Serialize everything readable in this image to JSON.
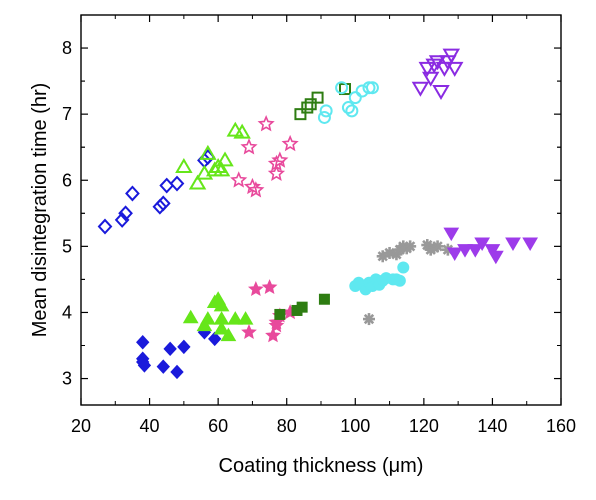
{
  "chart_data": {
    "type": "scatter",
    "title": "",
    "xlabel": "Coating thickness (μm)",
    "ylabel": "Mean disintegration time (hr)",
    "xlim": [
      20,
      160
    ],
    "ylim": [
      2.6,
      8.5
    ],
    "xticks": [
      "20",
      "40",
      "60",
      "80",
      "100",
      "120",
      "140",
      "160"
    ],
    "yticks": [
      "3",
      "4",
      "5",
      "6",
      "7",
      "8"
    ],
    "grid": false,
    "legend": "none",
    "series": [
      {
        "color": "#1a1adb",
        "marker": "diamond",
        "filled": false,
        "x": [
          27,
          32,
          33,
          35,
          43,
          44,
          45,
          48,
          56,
          57
        ],
        "y": [
          5.3,
          5.4,
          5.5,
          5.8,
          5.6,
          5.65,
          5.92,
          5.95,
          6.3,
          6.35
        ]
      },
      {
        "color": "#1a1adb",
        "marker": "diamond",
        "filled": true,
        "x": [
          38,
          38,
          38,
          38.5,
          44,
          46,
          48,
          50,
          56,
          59
        ],
        "y": [
          3.55,
          3.3,
          3.25,
          3.2,
          3.18,
          3.45,
          3.1,
          3.48,
          3.7,
          3.6
        ]
      },
      {
        "color": "#66e61a",
        "marker": "triangle-up",
        "filled": false,
        "x": [
          50,
          54,
          56,
          57,
          59,
          60,
          61,
          62,
          65,
          67
        ],
        "y": [
          6.2,
          5.95,
          6.1,
          6.4,
          6.15,
          6.2,
          6.15,
          6.3,
          6.75,
          6.72
        ]
      },
      {
        "color": "#66e61a",
        "marker": "triangle-up",
        "filled": true,
        "x": [
          52,
          56,
          57,
          59,
          60,
          61,
          61,
          63,
          65,
          68,
          61
        ],
        "y": [
          3.92,
          3.8,
          3.9,
          4.15,
          4.2,
          3.9,
          3.75,
          3.65,
          3.9,
          3.9,
          4.1
        ]
      },
      {
        "color": "#e84a9c",
        "marker": "star",
        "filled": false,
        "x": [
          66,
          69,
          70,
          71,
          74,
          77,
          77,
          78,
          81
        ],
        "y": [
          6.0,
          6.5,
          5.9,
          5.85,
          6.85,
          6.1,
          6.25,
          6.3,
          6.55
        ]
      },
      {
        "color": "#e84a9c",
        "marker": "star",
        "filled": true,
        "x": [
          69,
          71,
          75,
          76,
          77,
          77,
          78,
          81
        ],
        "y": [
          3.7,
          4.35,
          4.38,
          3.65,
          3.85,
          3.8,
          3.95,
          4.0
        ]
      },
      {
        "color": "#2e7d12",
        "marker": "square",
        "filled": false,
        "x": [
          84,
          86,
          87,
          89,
          97
        ],
        "y": [
          7.0,
          7.1,
          7.15,
          7.25,
          7.38
        ]
      },
      {
        "color": "#2e7d12",
        "marker": "square",
        "filled": true,
        "x": [
          78,
          83,
          84.5,
          91
        ],
        "y": [
          3.97,
          4.03,
          4.08,
          4.2
        ]
      },
      {
        "color": "#5fe8f0",
        "marker": "circle",
        "filled": false,
        "x": [
          91,
          91.5,
          96,
          98,
          99,
          100,
          102,
          104,
          105
        ],
        "y": [
          6.95,
          7.05,
          7.4,
          7.1,
          7.05,
          7.25,
          7.35,
          7.4,
          7.4
        ]
      },
      {
        "color": "#5fe8f0",
        "marker": "circle",
        "filled": true,
        "x": [
          100,
          101,
          103,
          104,
          105,
          106,
          107,
          108,
          109,
          111,
          112,
          113,
          114
        ],
        "y": [
          4.4,
          4.45,
          4.35,
          4.45,
          4.4,
          4.5,
          4.42,
          4.48,
          4.52,
          4.5,
          4.5,
          4.48,
          4.68
        ]
      },
      {
        "color": "#999999",
        "marker": "asterisk",
        "filled": false,
        "x": [
          104,
          108,
          110,
          112,
          113,
          114,
          115,
          116,
          121,
          122,
          123,
          124,
          127
        ],
        "y": [
          3.9,
          4.85,
          4.9,
          4.88,
          4.95,
          5.0,
          4.97,
          5.0,
          5.02,
          4.95,
          4.98,
          5.0,
          4.95
        ]
      },
      {
        "color": "#8a2be2",
        "marker": "triangle-down",
        "filled": false,
        "x": [
          119,
          121,
          122,
          123,
          124,
          125,
          126,
          127,
          128,
          129
        ],
        "y": [
          7.4,
          7.7,
          7.55,
          7.75,
          7.8,
          7.35,
          7.7,
          7.8,
          7.9,
          7.7
        ]
      },
      {
        "color": "#9d3bea",
        "marker": "triangle-down",
        "filled": true,
        "x": [
          128,
          129,
          132,
          135,
          137,
          140,
          141,
          146,
          151
        ],
        "y": [
          5.2,
          4.9,
          4.95,
          4.95,
          5.05,
          4.95,
          4.85,
          5.05,
          5.05
        ]
      }
    ]
  }
}
